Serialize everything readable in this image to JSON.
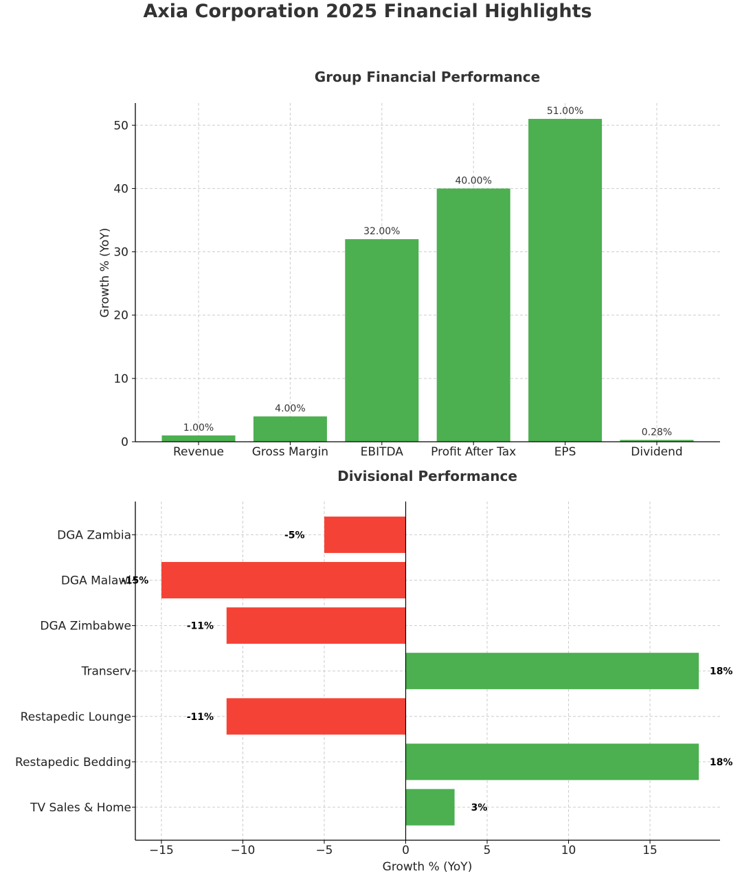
{
  "title": "Axia Corporation 2025 Financial Highlights",
  "colors": {
    "positive": "#4caf50",
    "negative": "#f44336",
    "grid": "#cccccc",
    "axis": "#000000",
    "text": "#333333"
  },
  "chart_data": [
    {
      "type": "bar",
      "title": "Group Financial Performance",
      "xlabel": "",
      "ylabel": "Growth % (YoY)",
      "categories": [
        "Revenue",
        "Gross Margin",
        "EBITDA",
        "Profit After Tax",
        "EPS",
        "Dividend"
      ],
      "values": [
        1.0,
        4.0,
        32.0,
        40.0,
        51.0,
        0.28
      ],
      "value_labels": [
        "1.00%",
        "4.00%",
        "32.00%",
        "40.00%",
        "51.00%",
        "0.28%"
      ],
      "ylim": [
        0,
        53.5
      ],
      "yticks": [
        0,
        10,
        20,
        30,
        40,
        50
      ],
      "grid": true,
      "legend": "none"
    },
    {
      "type": "bar",
      "orientation": "horizontal",
      "title": "Divisional Performance",
      "xlabel": "Growth % (YoY)",
      "ylabel": "",
      "categories": [
        "TV Sales & Home",
        "Restapedic Bedding",
        "Restapedic Lounge",
        "Transerv",
        "DGA Zimbabwe",
        "DGA Malawi",
        "DGA Zambia"
      ],
      "values": [
        3,
        18,
        -11,
        18,
        -11,
        -15,
        -5
      ],
      "value_labels": [
        "3%",
        "18%",
        "-11%",
        "18%",
        "-11%",
        "-15%",
        "-5%"
      ],
      "xlim": [
        -16.6,
        19.3
      ],
      "xticks": [
        -15,
        -10,
        -5,
        0,
        5,
        10,
        15
      ],
      "xtick_labels": [
        "−15",
        "−10",
        "−5",
        "0",
        "5",
        "10",
        "15"
      ],
      "grid": true,
      "legend": "none"
    }
  ]
}
